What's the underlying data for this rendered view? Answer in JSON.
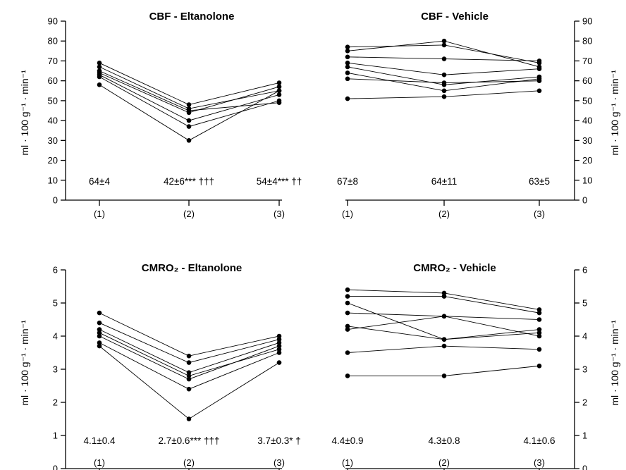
{
  "chart_data": [
    {
      "type": "line",
      "title": "CBF - Eltanolone",
      "categories": [
        "(1)",
        "(2)",
        "(3)"
      ],
      "ylabel": "ml · 100 g⁻¹ · min⁻¹",
      "ylim": [
        0,
        90
      ],
      "yticks": [
        0,
        10,
        20,
        30,
        40,
        50,
        60,
        70,
        80,
        90
      ],
      "series": [
        {
          "values": [
            69,
            48,
            59
          ]
        },
        {
          "values": [
            67,
            46,
            55
          ]
        },
        {
          "values": [
            65,
            45,
            49
          ]
        },
        {
          "values": [
            64,
            44,
            57
          ]
        },
        {
          "values": [
            63,
            40,
            53
          ]
        },
        {
          "values": [
            62,
            37,
            50
          ]
        },
        {
          "values": [
            58,
            30,
            55
          ]
        }
      ],
      "annotations": [
        "64±4",
        "42±6*** †††",
        "54±4*** ††"
      ]
    },
    {
      "type": "line",
      "title": "CBF - Vehicle",
      "categories": [
        "(1)",
        "(2)",
        "(3)"
      ],
      "ylabel": "ml · 100 g⁻¹ · min⁻¹",
      "ylim": [
        0,
        90
      ],
      "yticks": [
        0,
        10,
        20,
        30,
        40,
        50,
        60,
        70,
        80,
        90
      ],
      "series": [
        {
          "values": [
            77,
            78,
            69
          ]
        },
        {
          "values": [
            75,
            80,
            67
          ]
        },
        {
          "values": [
            72,
            71,
            70
          ]
        },
        {
          "values": [
            69,
            63,
            66
          ]
        },
        {
          "values": [
            67,
            58,
            62
          ]
        },
        {
          "values": [
            64,
            55,
            61
          ]
        },
        {
          "values": [
            61,
            59,
            60
          ]
        },
        {
          "values": [
            51,
            52,
            55
          ]
        }
      ],
      "annotations": [
        "67±8",
        "64±11",
        "63±5"
      ]
    },
    {
      "type": "line",
      "title": "CMRO₂ - Eltanolone",
      "categories": [
        "(1)",
        "(2)",
        "(3)"
      ],
      "ylabel": "ml · 100 g⁻¹ · min⁻¹",
      "ylim": [
        0,
        6
      ],
      "yticks": [
        0,
        1,
        2,
        3,
        4,
        5,
        6
      ],
      "series": [
        {
          "values": [
            4.7,
            3.4,
            4.0
          ]
        },
        {
          "values": [
            4.4,
            3.2,
            3.9
          ]
        },
        {
          "values": [
            4.2,
            2.9,
            3.8
          ]
        },
        {
          "values": [
            4.1,
            2.8,
            3.6
          ]
        },
        {
          "values": [
            4.0,
            2.7,
            3.7
          ]
        },
        {
          "values": [
            3.8,
            2.4,
            3.5
          ]
        },
        {
          "values": [
            3.7,
            1.5,
            3.2
          ]
        }
      ],
      "annotations": [
        "4.1±0.4",
        "2.7±0.6*** †††",
        "3.7±0.3* †"
      ]
    },
    {
      "type": "line",
      "title": "CMRO₂ - Vehicle",
      "categories": [
        "(1)",
        "(2)",
        "(3)"
      ],
      "ylabel": "ml · 100 g⁻¹ · min⁻¹",
      "ylim": [
        0,
        6
      ],
      "yticks": [
        0,
        1,
        2,
        3,
        4,
        5,
        6
      ],
      "series": [
        {
          "values": [
            5.4,
            5.3,
            4.8
          ]
        },
        {
          "values": [
            5.2,
            5.2,
            4.7
          ]
        },
        {
          "values": [
            4.7,
            4.6,
            4.5
          ]
        },
        {
          "values": [
            5.0,
            3.9,
            4.2
          ]
        },
        {
          "values": [
            4.3,
            3.9,
            4.1
          ]
        },
        {
          "values": [
            4.2,
            4.6,
            4.0
          ]
        },
        {
          "values": [
            3.5,
            3.7,
            3.6
          ]
        },
        {
          "values": [
            2.8,
            2.8,
            3.1
          ]
        }
      ],
      "annotations": [
        "4.4±0.9",
        "4.3±0.8",
        "4.1±0.6"
      ]
    }
  ]
}
